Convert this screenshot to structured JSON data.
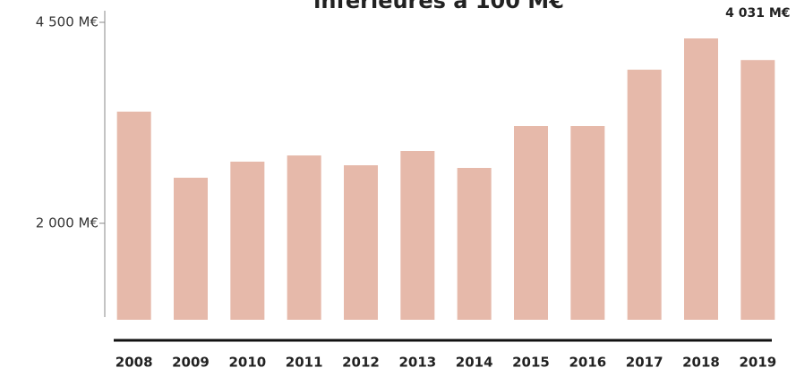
{
  "chart_data": {
    "type": "bar",
    "title": "inférieures à 100 M€",
    "categories": [
      "2008",
      "2009",
      "2010",
      "2011",
      "2012",
      "2013",
      "2014",
      "2015",
      "2016",
      "2017",
      "2018",
      "2019"
    ],
    "values": [
      3389,
      2567,
      2767,
      2844,
      2722,
      2900,
      2689,
      3211,
      3211,
      3911,
      4300,
      4031
    ],
    "value_labels": [
      null,
      null,
      null,
      null,
      null,
      null,
      null,
      null,
      null,
      null,
      null,
      "4 031 M€"
    ],
    "color": "#e6b9aa",
    "ylim": [
      800,
      4500
    ],
    "yticks": [
      {
        "value": 2000,
        "label": "2 000 M€"
      },
      {
        "value": 4500,
        "label": "4 500 M€"
      }
    ],
    "grid": false
  }
}
